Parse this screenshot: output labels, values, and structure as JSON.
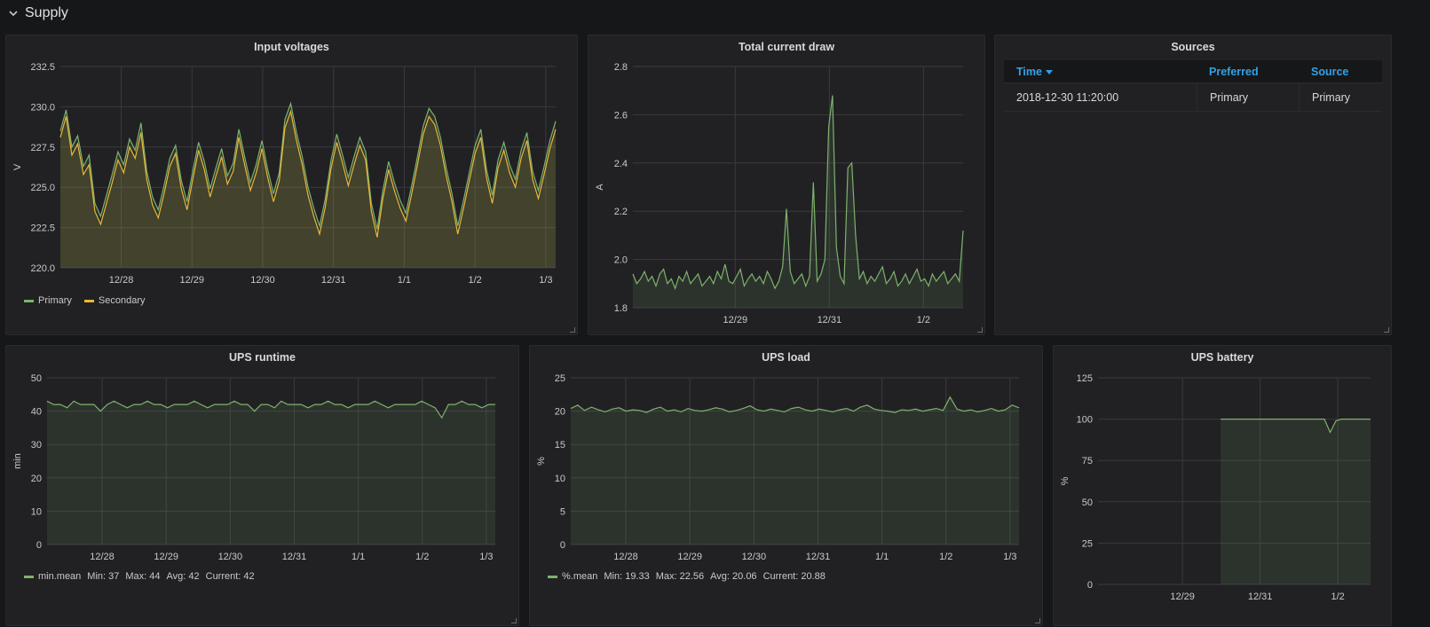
{
  "row": {
    "title": "Supply"
  },
  "colors": {
    "primary": "#7eb26d",
    "secondary": "#eab839",
    "grid": "#3a3a3e",
    "axis": "#c8c9ca"
  },
  "panels": {
    "voltages": {
      "title": "Input voltages",
      "legend": [
        {
          "name": "Primary",
          "color": "#7eb26d"
        },
        {
          "name": "Secondary",
          "color": "#eab839"
        }
      ]
    },
    "current": {
      "title": "Total current draw"
    },
    "sources": {
      "title": "Sources",
      "columns": [
        "Time",
        "Preferred",
        "Source"
      ],
      "rows": [
        [
          "2018-12-30 11:20:00",
          "Primary",
          "Primary"
        ]
      ]
    },
    "runtime": {
      "title": "UPS runtime",
      "legend": {
        "name": "min.mean",
        "min": "Min: 37",
        "max": "Max: 44",
        "avg": "Avg: 42",
        "current": "Current: 42"
      }
    },
    "load": {
      "title": "UPS load",
      "legend": {
        "name": "%.mean",
        "min": "Min: 19.33",
        "max": "Max: 22.56",
        "avg": "Avg: 20.06",
        "current": "Current: 20.88"
      }
    },
    "battery": {
      "title": "UPS battery"
    }
  },
  "chart_data": [
    {
      "id": "voltages",
      "type": "area",
      "ylabel": "V",
      "ylim": [
        220,
        232.5
      ],
      "yticks": [
        "220.0",
        "222.5",
        "225.0",
        "227.5",
        "230.0",
        "232.5"
      ],
      "xticks": [
        "12/28",
        "12/29",
        "12/30",
        "12/31",
        "1/1",
        "1/2",
        "1/3"
      ],
      "series": [
        {
          "name": "Primary",
          "color": "#7eb26d",
          "values": [
            228.5,
            229.8,
            227.5,
            228.2,
            226.3,
            227.0,
            224.0,
            223.2,
            224.5,
            225.8,
            227.2,
            226.4,
            228.0,
            227.3,
            229.0,
            226.0,
            224.4,
            223.6,
            225.1,
            226.8,
            227.6,
            225.4,
            224.1,
            226.0,
            227.8,
            226.6,
            224.9,
            226.2,
            227.4,
            225.7,
            226.5,
            228.6,
            226.9,
            225.3,
            226.4,
            227.9,
            226.1,
            224.6,
            225.9,
            229.2,
            230.2,
            228.4,
            226.9,
            225.0,
            223.7,
            222.6,
            224.3,
            226.7,
            228.3,
            227.0,
            225.6,
            226.9,
            228.1,
            227.2,
            224.0,
            222.4,
            224.8,
            226.6,
            225.3,
            224.2,
            223.4,
            225.1,
            226.9,
            228.8,
            229.9,
            229.4,
            228.1,
            226.2,
            224.6,
            222.6,
            224.2,
            225.9,
            227.6,
            228.6,
            226.1,
            224.5,
            226.7,
            227.8,
            226.4,
            225.5,
            227.3,
            228.4,
            226.0,
            224.8,
            226.3,
            227.9,
            229.1
          ]
        },
        {
          "name": "Secondary",
          "color": "#eab839",
          "values": [
            228.1,
            229.4,
            227.0,
            227.7,
            225.8,
            226.4,
            223.5,
            222.7,
            224.0,
            225.3,
            226.7,
            225.9,
            227.5,
            226.8,
            228.4,
            225.5,
            223.9,
            223.1,
            224.6,
            226.3,
            227.1,
            224.9,
            223.6,
            225.5,
            227.3,
            226.1,
            224.4,
            225.7,
            226.9,
            225.2,
            226.0,
            228.1,
            226.4,
            224.8,
            225.9,
            227.4,
            225.6,
            224.1,
            225.4,
            228.7,
            229.7,
            227.9,
            226.4,
            224.5,
            223.2,
            222.1,
            223.8,
            226.2,
            227.8,
            226.5,
            225.1,
            226.4,
            227.6,
            226.7,
            223.5,
            221.9,
            224.3,
            226.1,
            224.8,
            223.7,
            222.9,
            224.6,
            226.4,
            228.3,
            229.4,
            228.9,
            227.6,
            225.7,
            224.1,
            222.1,
            223.7,
            225.4,
            227.1,
            228.1,
            225.6,
            224.0,
            226.2,
            227.3,
            225.9,
            225.0,
            226.8,
            227.9,
            225.5,
            224.3,
            225.8,
            227.4,
            228.6
          ]
        }
      ]
    },
    {
      "id": "current",
      "type": "area",
      "ylabel": "A",
      "ylim": [
        1.8,
        2.8
      ],
      "yticks": [
        "1.8",
        "2.0",
        "2.2",
        "2.4",
        "2.6",
        "2.8"
      ],
      "xticks": [
        "12/29",
        "12/31",
        "1/2"
      ],
      "series": [
        {
          "name": "",
          "color": "#7eb26d",
          "values": [
            1.94,
            1.9,
            1.92,
            1.95,
            1.91,
            1.93,
            1.89,
            1.94,
            1.96,
            1.9,
            1.92,
            1.88,
            1.93,
            1.91,
            1.95,
            1.9,
            1.92,
            1.94,
            1.89,
            1.91,
            1.93,
            1.9,
            1.95,
            1.92,
            1.98,
            1.91,
            1.9,
            1.93,
            1.96,
            1.89,
            1.92,
            1.94,
            1.91,
            1.93,
            1.9,
            1.95,
            1.92,
            1.88,
            1.91,
            1.97,
            2.21,
            1.95,
            1.9,
            1.92,
            1.94,
            1.89,
            1.93,
            2.32,
            1.91,
            1.94,
            2.0,
            2.55,
            2.68,
            2.05,
            1.93,
            1.9,
            2.38,
            2.4,
            2.1,
            1.92,
            1.95,
            1.9,
            1.93,
            1.91,
            1.94,
            1.97,
            1.9,
            1.92,
            1.95,
            1.89,
            1.91,
            1.94,
            1.9,
            1.93,
            1.96,
            1.91,
            1.92,
            1.89,
            1.94,
            1.91,
            1.93,
            1.95,
            1.9,
            1.92,
            1.94,
            1.91,
            2.12
          ]
        }
      ]
    },
    {
      "id": "runtime",
      "type": "area",
      "ylabel": "min",
      "ylim": [
        0,
        50
      ],
      "yticks": [
        "0",
        "10",
        "20",
        "30",
        "40",
        "50"
      ],
      "xticks": [
        "12/28",
        "12/29",
        "12/30",
        "12/31",
        "1/1",
        "1/2",
        "1/3"
      ],
      "series": [
        {
          "name": "min.mean",
          "color": "#7eb26d",
          "values": [
            43,
            42,
            42,
            41,
            43,
            42,
            42,
            42,
            40,
            42,
            43,
            42,
            41,
            42,
            42,
            43,
            42,
            42,
            41,
            42,
            42,
            42,
            43,
            42,
            41,
            42,
            42,
            42,
            43,
            42,
            42,
            40,
            42,
            42,
            41,
            43,
            42,
            42,
            42,
            41,
            42,
            42,
            43,
            42,
            42,
            41,
            42,
            42,
            42,
            43,
            42,
            41,
            42,
            42,
            42,
            42,
            43,
            42,
            41,
            38,
            42,
            42,
            43,
            42,
            42,
            41,
            42,
            42
          ]
        }
      ]
    },
    {
      "id": "load",
      "type": "area",
      "ylabel": "%",
      "ylim": [
        0,
        25
      ],
      "yticks": [
        "0",
        "5",
        "10",
        "15",
        "20",
        "25"
      ],
      "xticks": [
        "12/28",
        "12/29",
        "12/30",
        "12/31",
        "1/1",
        "1/2",
        "1/3"
      ],
      "series": [
        {
          "name": "%.mean",
          "color": "#7eb26d",
          "values": [
            20.4,
            20.9,
            20.1,
            20.6,
            20.2,
            19.9,
            20.3,
            20.5,
            20.0,
            20.2,
            20.1,
            19.8,
            20.3,
            20.6,
            20.0,
            20.2,
            19.9,
            20.4,
            20.1,
            20.0,
            20.2,
            20.5,
            20.3,
            19.9,
            20.1,
            20.4,
            20.8,
            20.2,
            20.0,
            20.3,
            20.1,
            19.9,
            20.4,
            20.6,
            20.2,
            20.0,
            20.3,
            20.1,
            19.9,
            20.2,
            20.4,
            20.0,
            20.6,
            20.9,
            20.3,
            20.1,
            20.0,
            19.8,
            20.2,
            20.1,
            20.3,
            20.0,
            20.2,
            20.4,
            20.1,
            22.1,
            20.3,
            20.0,
            20.2,
            19.9,
            20.1,
            20.4,
            20.0,
            20.2,
            20.9,
            20.5
          ]
        }
      ]
    },
    {
      "id": "battery",
      "type": "area",
      "ylabel": "%",
      "ylim": [
        0,
        125
      ],
      "yticks": [
        "0",
        "25",
        "50",
        "75",
        "100",
        "125"
      ],
      "xticks": [
        "12/29",
        "12/31",
        "1/2"
      ],
      "series": [
        {
          "name": "",
          "color": "#7eb26d",
          "x_start": 0.45,
          "values": [
            100,
            100,
            100,
            100,
            100,
            100,
            100,
            100,
            100,
            100,
            100,
            100,
            100,
            100,
            100,
            100,
            100,
            100,
            100,
            92,
            99,
            100,
            100,
            100,
            100,
            100,
            100
          ]
        }
      ]
    }
  ]
}
